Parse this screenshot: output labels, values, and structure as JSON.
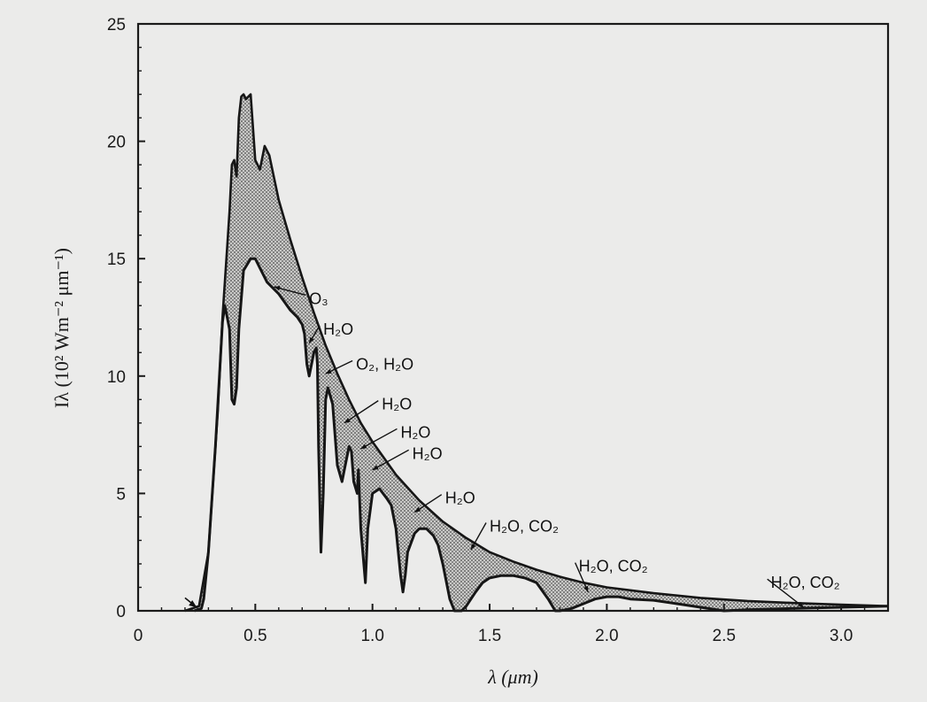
{
  "chart_data": {
    "type": "area",
    "xlabel": "λ (μm)",
    "ylabel": "Iλ (10² Wm⁻² μm⁻¹)",
    "xlim": [
      0,
      3.2
    ],
    "ylim": [
      0,
      25
    ],
    "x_ticks": [
      "0",
      "0.5",
      "1.0",
      "1.5",
      "2.0",
      "2.5",
      "3.0"
    ],
    "x_tick_values": [
      0,
      0.5,
      1.0,
      1.5,
      2.0,
      2.5,
      3.0
    ],
    "y_ticks": [
      "0",
      "5",
      "10",
      "15",
      "20",
      "25"
    ],
    "y_tick_values": [
      0,
      5,
      10,
      15,
      20,
      25
    ],
    "grid": false,
    "colors": {
      "line": "#161616",
      "shade": "#9c9c9c",
      "background": "#ebebea"
    },
    "series": [
      {
        "x": [
          0.2,
          0.26,
          0.3,
          0.34,
          0.36,
          0.38,
          0.39,
          0.4,
          0.41,
          0.42,
          0.43,
          0.44,
          0.45,
          0.46,
          0.48,
          0.5,
          0.52,
          0.54,
          0.56,
          0.6,
          0.65,
          0.7,
          0.75,
          0.8,
          0.85,
          0.9,
          0.95,
          1.0,
          1.1,
          1.2,
          1.3,
          1.4,
          1.5,
          1.6,
          1.7,
          1.8,
          1.9,
          2.0,
          2.2,
          2.4,
          2.6,
          2.8,
          3.0,
          3.2
        ],
        "values": [
          0,
          0.2,
          2.5,
          8.5,
          12.5,
          15.5,
          17,
          19,
          19.2,
          18.5,
          21,
          21.9,
          22,
          21.8,
          22,
          19.2,
          18.8,
          19.8,
          19.4,
          17.5,
          15.8,
          14.2,
          12.7,
          11.3,
          10.1,
          9.0,
          8.0,
          7.2,
          5.8,
          4.7,
          3.8,
          3.1,
          2.5,
          2.1,
          1.75,
          1.45,
          1.2,
          1.0,
          0.75,
          0.55,
          0.42,
          0.33,
          0.26,
          0.2
        ]
      },
      {
        "x": [
          0.24,
          0.27,
          0.28,
          0.3,
          0.33,
          0.35,
          0.36,
          0.37,
          0.38,
          0.39,
          0.4,
          0.41,
          0.42,
          0.43,
          0.45,
          0.48,
          0.5,
          0.52,
          0.55,
          0.6,
          0.65,
          0.68,
          0.7,
          0.71,
          0.72,
          0.73,
          0.74,
          0.75,
          0.76,
          0.765,
          0.77,
          0.78,
          0.79,
          0.8,
          0.81,
          0.83,
          0.85,
          0.87,
          0.88,
          0.9,
          0.91,
          0.92,
          0.935,
          0.94,
          0.95,
          0.97,
          0.98,
          1.0,
          1.03,
          1.06,
          1.08,
          1.1,
          1.12,
          1.13,
          1.14,
          1.15,
          1.18,
          1.2,
          1.23,
          1.26,
          1.28,
          1.3,
          1.33,
          1.35,
          1.38,
          1.4,
          1.44,
          1.47,
          1.5,
          1.55,
          1.6,
          1.65,
          1.7,
          1.75,
          1.78,
          1.8,
          1.85,
          1.9,
          1.95,
          2.0,
          2.05,
          2.1,
          2.2,
          2.3,
          2.4,
          2.5,
          2.6,
          2.8,
          3.0,
          3.2
        ],
        "values": [
          0,
          0.1,
          0.5,
          2.5,
          7,
          10.5,
          12.3,
          13,
          12.5,
          12,
          9,
          8.8,
          9.5,
          12,
          14.5,
          15,
          15,
          14.6,
          14,
          13.5,
          12.8,
          12.5,
          12.2,
          11.8,
          10.5,
          10,
          10.5,
          11,
          11.2,
          10.5,
          7,
          2.5,
          5,
          9,
          9.5,
          8.8,
          6.2,
          5.5,
          6,
          7,
          6.8,
          5.5,
          5,
          6,
          3.5,
          1.2,
          3.5,
          5,
          5.2,
          4.8,
          4.5,
          3.5,
          1.5,
          0.8,
          1.5,
          2.5,
          3.3,
          3.5,
          3.5,
          3.2,
          2.8,
          2,
          0.5,
          0,
          0,
          0.2,
          0.8,
          1.2,
          1.4,
          1.5,
          1.5,
          1.4,
          1.2,
          0.5,
          0,
          0,
          0.1,
          0.3,
          0.5,
          0.6,
          0.6,
          0.5,
          0.45,
          0.3,
          0.15,
          0,
          0.05,
          0.1,
          0.15,
          0.2
        ]
      }
    ],
    "annotations": [
      {
        "text": "O₃",
        "x": 0.73,
        "y": 13.3,
        "ax": 0.58,
        "ay": 13.8
      },
      {
        "text": "H₂O",
        "x": 0.79,
        "y": 12.0,
        "ax": 0.73,
        "ay": 11.4
      },
      {
        "text": "O₂, H₂O",
        "x": 0.93,
        "y": 10.5,
        "ax": 0.8,
        "ay": 10.1
      },
      {
        "text": "H₂O",
        "x": 1.04,
        "y": 8.8,
        "ax": 0.88,
        "ay": 8.0
      },
      {
        "text": "H₂O",
        "x": 1.12,
        "y": 7.6,
        "ax": 0.95,
        "ay": 6.9
      },
      {
        "text": "H₂O",
        "x": 1.17,
        "y": 6.7,
        "ax": 1.0,
        "ay": 6.0
      },
      {
        "text": "H₂O",
        "x": 1.31,
        "y": 4.8,
        "ax": 1.18,
        "ay": 4.2
      },
      {
        "text": "H₂O, CO₂",
        "x": 1.5,
        "y": 3.6,
        "ax": 1.42,
        "ay": 2.6
      },
      {
        "text": "H₂O, CO₂",
        "x": 1.88,
        "y": 1.9,
        "ax": 1.92,
        "ay": 0.8
      },
      {
        "text": "H₂O, CO₂",
        "x": 2.7,
        "y": 1.2,
        "ax": 2.84,
        "ay": 0.15
      }
    ]
  }
}
